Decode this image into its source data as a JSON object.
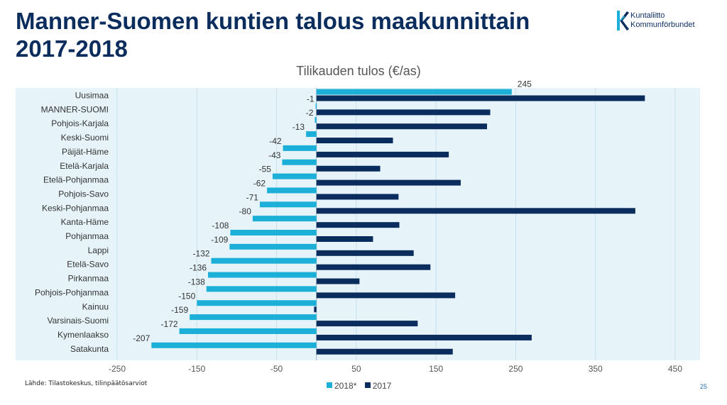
{
  "slide": {
    "title_line1": "Manner-Suomen kuntien talous maakunnittain",
    "title_line2": "2017-2018",
    "logo": {
      "line1": "Kuntaliitto",
      "line2": "Kommunförbundet"
    },
    "source": "Lähde: Tilastokeskus, tilinpäätösarviot",
    "page_number": "25"
  },
  "chart_data": {
    "type": "bar",
    "orientation": "horizontal",
    "title": "Tilikauden tulos (€/as)",
    "categories": [
      "Uusimaa",
      "MANNER-SUOMI",
      "Pohjois-Karjala",
      "Keski-Suomi",
      "Päijät-Häme",
      "Etelä-Karjala",
      "Etelä-Pohjanmaa",
      "Pohjois-Savo",
      "Keski-Pohjanmaa",
      "Kanta-Häme",
      "Pohjanmaa",
      "Lappi",
      "Etelä-Savo",
      "Pirkanmaa",
      "Pohjois-Pohjanmaa",
      "Kainuu",
      "Varsinais-Suomi",
      "Kymenlaakso",
      "Satakunta"
    ],
    "series": [
      {
        "name": "2018*",
        "color": "#1cb0d8",
        "values": [
          245,
          -1,
          -2,
          -13,
          -42,
          -43,
          -55,
          -62,
          -71,
          -80,
          -108,
          -109,
          -132,
          -136,
          -138,
          -150,
          -159,
          -172,
          -207
        ],
        "labels": [
          "245",
          "-1",
          "-2",
          "-13",
          "-42",
          "-43",
          "-55",
          "-62",
          "-71",
          "-80",
          "-108",
          "-109",
          "-132",
          "-136",
          "-138",
          "-150",
          "-159",
          "-172",
          "-207"
        ]
      },
      {
        "name": "2017",
        "color": "#0b2d5e",
        "values": [
          412,
          218,
          214,
          96,
          166,
          80,
          181,
          103,
          400,
          104,
          71,
          122,
          143,
          54,
          174,
          -3,
          127,
          270,
          171
        ]
      }
    ],
    "xlim": [
      -250,
      450
    ],
    "xticks": [
      -250,
      -150,
      -50,
      50,
      150,
      250,
      350,
      450
    ],
    "xtick_labels": [
      "-250",
      "-150",
      "-50",
      "50",
      "150",
      "250",
      "350",
      "450"
    ],
    "plot_background": "#e6f4fa",
    "grid": true,
    "legend": "bottom"
  }
}
